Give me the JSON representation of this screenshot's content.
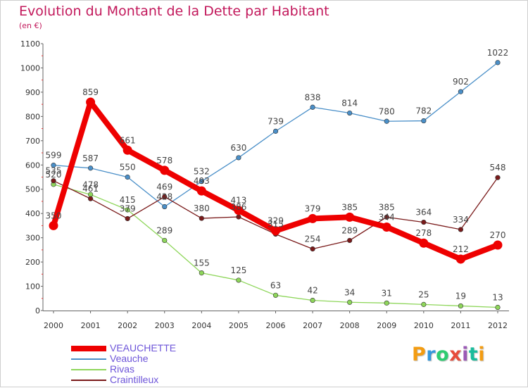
{
  "title": "Evolution du Montant de la Dette par Habitant",
  "unit": "(en €)",
  "logo": {
    "letters": [
      "P",
      "r",
      "o",
      "x",
      "i",
      "t",
      "i"
    ],
    "colors": [
      "#f39c12",
      "#3498db",
      "#2ecc71",
      "#e74c3c",
      "#9b59b6",
      "#1abc9c",
      "#f39c12"
    ]
  },
  "chart_data": {
    "type": "line",
    "title": "Evolution du Montant de la Dette par Habitant",
    "ylabel": "(en €)",
    "xlabel": "",
    "ylim": [
      0,
      1100
    ],
    "yticks": [
      0,
      100,
      200,
      300,
      400,
      500,
      600,
      700,
      800,
      900,
      1000,
      1100
    ],
    "x": [
      "2000",
      "2001",
      "2002",
      "2003",
      "2004",
      "2005",
      "2006",
      "2007",
      "2008",
      "2009",
      "2010",
      "2011",
      "2012"
    ],
    "grid": false,
    "legend_position": "bottom-left",
    "series": [
      {
        "name": "VEAUCHETTE",
        "color": "#ee0000",
        "values": [
          350,
          859,
          661,
          578,
          493,
          413,
          329,
          379,
          385,
          344,
          278,
          212,
          270
        ]
      },
      {
        "name": "Veauche",
        "color": "#4a8fc8",
        "values": [
          599,
          587,
          550,
          428,
          532,
          630,
          739,
          838,
          814,
          780,
          782,
          902,
          1022
        ]
      },
      {
        "name": "Rivas",
        "color": "#8ed65a",
        "values": [
          520,
          478,
          415,
          289,
          155,
          125,
          63,
          42,
          34,
          31,
          25,
          19,
          13
        ]
      },
      {
        "name": "Craintilleux",
        "color": "#7a1a1a",
        "values": [
          535,
          461,
          379,
          469,
          380,
          386,
          315,
          254,
          289,
          385,
          364,
          334,
          548
        ]
      }
    ]
  }
}
